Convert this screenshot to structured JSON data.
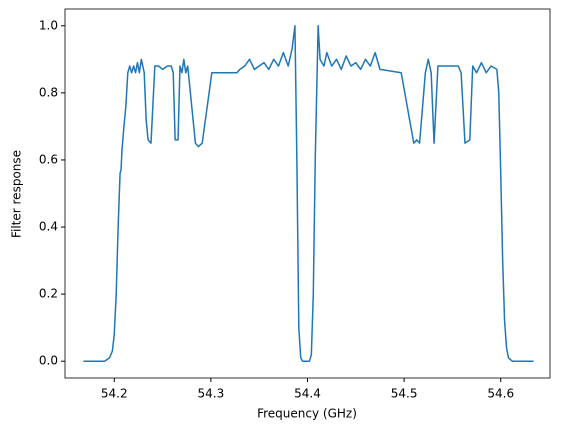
{
  "chart_data": {
    "type": "line",
    "xlabel": "Frequency (GHz)",
    "ylabel": "Filter response",
    "series": [
      {
        "name": "filter",
        "color": "#1f77b4",
        "x": [
          54.168,
          54.19,
          54.195,
          54.198,
          54.2,
          54.202,
          54.204,
          54.206,
          54.207,
          54.208,
          54.21,
          54.212,
          54.214,
          54.216,
          54.218,
          54.22,
          54.222,
          54.224,
          54.226,
          54.228,
          54.231,
          54.233,
          54.235,
          54.238,
          54.242,
          54.246,
          54.25,
          54.255,
          54.259,
          54.261,
          54.263,
          54.266,
          54.268,
          54.27,
          54.272,
          54.274,
          54.276,
          54.284,
          54.287,
          54.291,
          54.301,
          54.315,
          54.327,
          54.33,
          54.335,
          54.34,
          54.345,
          54.35,
          54.355,
          54.36,
          54.365,
          54.37,
          54.375,
          54.38,
          54.384,
          54.387,
          54.389,
          54.391,
          54.393,
          54.395,
          54.402,
          54.404,
          54.406,
          54.408,
          54.411,
          54.413,
          54.417,
          54.42,
          54.425,
          54.43,
          54.435,
          54.44,
          54.445,
          54.45,
          54.455,
          54.46,
          54.465,
          54.47,
          54.475,
          54.497,
          54.51,
          54.513,
          54.516,
          54.522,
          54.525,
          54.528,
          54.531,
          54.535,
          54.545,
          54.556,
          54.559,
          54.563,
          54.568,
          54.571,
          54.575,
          54.58,
          54.585,
          54.59,
          54.596,
          54.598,
          54.6,
          54.602,
          54.604,
          54.606,
          54.608,
          54.612,
          54.634
        ],
        "values": [
          0.0,
          0.0,
          0.01,
          0.03,
          0.08,
          0.2,
          0.4,
          0.56,
          0.57,
          0.63,
          0.7,
          0.76,
          0.86,
          0.88,
          0.86,
          0.88,
          0.86,
          0.89,
          0.86,
          0.9,
          0.86,
          0.72,
          0.66,
          0.65,
          0.88,
          0.88,
          0.87,
          0.88,
          0.88,
          0.86,
          0.66,
          0.66,
          0.88,
          0.86,
          0.9,
          0.86,
          0.88,
          0.65,
          0.64,
          0.65,
          0.86,
          0.86,
          0.86,
          0.87,
          0.88,
          0.9,
          0.87,
          0.88,
          0.89,
          0.87,
          0.9,
          0.88,
          0.92,
          0.88,
          0.93,
          1.0,
          0.6,
          0.1,
          0.01,
          0.0,
          0.0,
          0.02,
          0.2,
          0.6,
          1.0,
          0.9,
          0.88,
          0.92,
          0.88,
          0.9,
          0.87,
          0.91,
          0.88,
          0.89,
          0.87,
          0.9,
          0.88,
          0.92,
          0.87,
          0.86,
          0.65,
          0.66,
          0.65,
          0.86,
          0.9,
          0.86,
          0.65,
          0.88,
          0.88,
          0.88,
          0.86,
          0.65,
          0.66,
          0.88,
          0.86,
          0.89,
          0.86,
          0.88,
          0.87,
          0.8,
          0.56,
          0.3,
          0.12,
          0.04,
          0.01,
          0.0,
          0.0
        ]
      }
    ],
    "xlim": [
      54.149,
      54.651
    ],
    "ylim": [
      -0.05,
      1.05
    ],
    "xticks": [
      54.2,
      54.3,
      54.4,
      54.5,
      54.6
    ],
    "yticks": [
      {
        "value": 0,
        "label": "0.0"
      },
      0.2,
      0.4,
      0.6,
      0.8,
      {
        "value": 1,
        "label": "1.0"
      }
    ]
  }
}
